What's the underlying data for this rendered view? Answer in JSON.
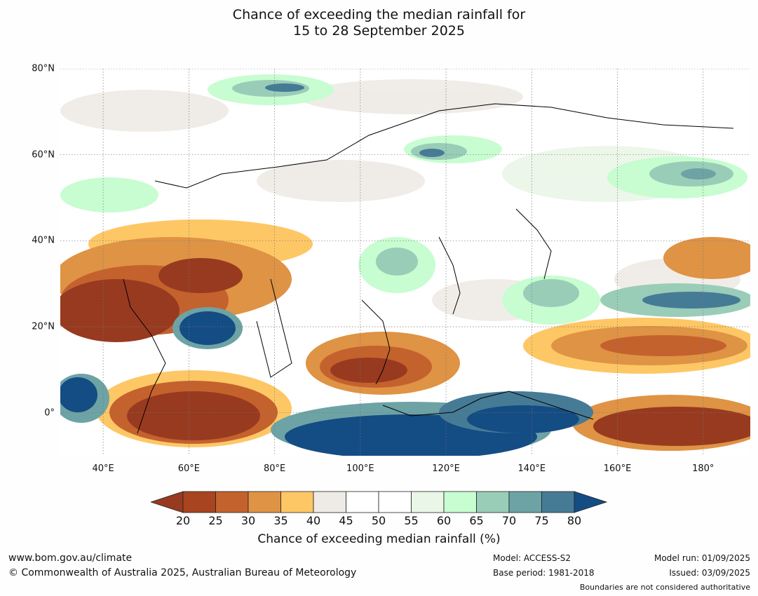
{
  "title_line1": "Chance of exceeding the median rainfall for",
  "title_line2": "15 to 28 September 2025",
  "map": {
    "lat_labels": [
      "80°N",
      "60°N",
      "40°N",
      "20°N",
      "0°"
    ],
    "lon_labels": [
      "40°E",
      "60°E",
      "80°E",
      "100°E",
      "120°E",
      "140°E",
      "160°E",
      "180°"
    ],
    "lat_values": [
      80,
      60,
      40,
      20,
      0
    ],
    "lon_values": [
      40,
      60,
      80,
      100,
      120,
      140,
      160,
      180
    ],
    "extent": {
      "lon_min": 30,
      "lon_max": 191,
      "lat_min": -10,
      "lat_max": 80
    }
  },
  "colorbar": {
    "ticks": [
      "20",
      "25",
      "30",
      "35",
      "40",
      "45",
      "50",
      "55",
      "60",
      "65",
      "70",
      "75",
      "80"
    ],
    "colors": [
      "#a8441f",
      "#c4622e",
      "#df9344",
      "#fec765",
      "#eeebe6",
      "#ffffff",
      "#ffffff",
      "#eaf6e8",
      "#c7fdd0",
      "#9acdb8",
      "#6da3a5",
      "#467b96"
    ],
    "low_extend_color": "#983a20",
    "high_extend_color": "#144c84",
    "label": "Chance of exceeding median rainfall (%)"
  },
  "footer": {
    "url": "www.bom.gov.au/climate",
    "copyright": "© Commonwealth of Australia 2025, Australian Bureau of Meteorology",
    "model": "Model: ACCESS-S2",
    "base_period": "Base period: 1981-2018",
    "model_run": "Model run: 01/09/2025",
    "issued": "Issued: 03/09/2025",
    "disclaimer": "Boundaries are not considered authoritative"
  }
}
